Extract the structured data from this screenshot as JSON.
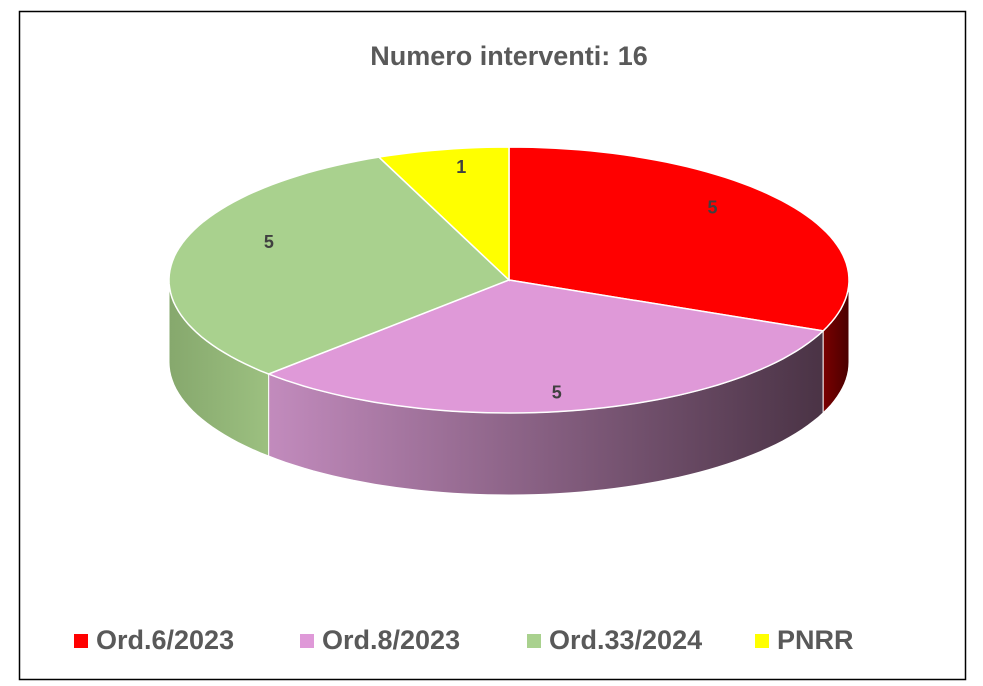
{
  "chart_data": {
    "type": "pie3d",
    "title": "Numero interventi: 16",
    "categories": [
      "Ord.6/2023",
      "Ord.8/2023",
      "Ord.33/2024",
      "PNRR"
    ],
    "values": [
      5,
      5,
      5,
      1
    ],
    "colors": [
      "#ff0000",
      "#df99d8",
      "#a9d18e",
      "#ffff00"
    ],
    "legend": "bottom"
  }
}
